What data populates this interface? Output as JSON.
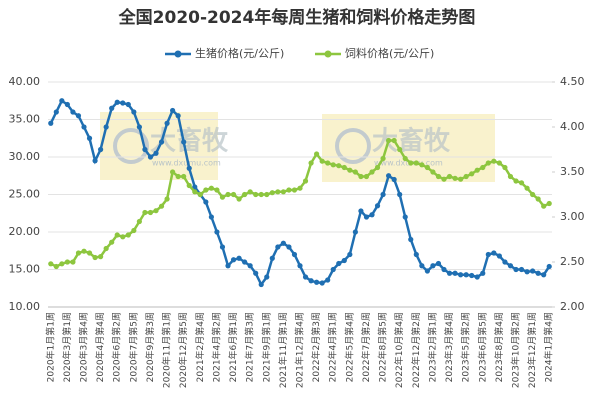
{
  "chart_data": {
    "type": "line",
    "title": "全国2020-2024年每周生猪和饲料价格走势图",
    "watermarks": [
      "大畜牧",
      "大畜牧"
    ],
    "watermark_urls": [
      "www.dxumu.com",
      "www.dxumu.com"
    ],
    "categories": [
      "2020年1月第1周",
      null,
      null,
      "2020年3月第1周",
      null,
      null,
      "2020年3月第4周",
      null,
      null,
      "2020年4月第4周",
      null,
      null,
      "2020年6月第2周",
      null,
      null,
      "2020年7月第5周",
      null,
      null,
      "2020年9月第3周",
      null,
      null,
      "2020年11月第1周",
      null,
      null,
      "2020年12月第5周",
      null,
      null,
      "2021年2月第4周",
      null,
      null,
      "2021年4月第2周",
      null,
      null,
      "2021年6月第1周",
      null,
      null,
      "2021年7月第3周",
      null,
      null,
      "2021年9月第1周",
      null,
      null,
      "2021年11月第1周",
      null,
      null,
      "2021年12月第4周",
      null,
      null,
      "2022年2月第3周",
      null,
      null,
      "2022年4月第1周",
      null,
      null,
      "2022年5月第4周",
      null,
      null,
      "2022年7月第2周",
      null,
      null,
      "2022年8月第5周",
      null,
      null,
      "2022年10月第4周",
      null,
      null,
      "2022年12月第2周",
      null,
      null,
      "2023年2月第1周",
      null,
      null,
      "2023年3月第4周",
      null,
      null,
      "2023年5月第2周",
      null,
      null,
      "2023年6月第5周",
      null,
      null,
      "2023年8月第4周",
      null,
      null,
      "2023年10月第2周",
      null,
      null,
      "2023年12月第1周",
      null,
      null,
      "2024年1月第4周"
    ],
    "series": [
      {
        "name": "生猪价格(元/公斤)",
        "color": "#1f6fb2",
        "axis": "y",
        "values": [
          34.5,
          36,
          37.5,
          37,
          36,
          35.5,
          34,
          32.5,
          29.5,
          31,
          34,
          36.5,
          37.3,
          37.2,
          37,
          36,
          34,
          31,
          30,
          30.5,
          32,
          34.5,
          36.2,
          35.5,
          32,
          28.5,
          26,
          25,
          24,
          22,
          20,
          18,
          15.5,
          16.3,
          16.5,
          16,
          15.5,
          14.5,
          13,
          14,
          16.5,
          18,
          18.5,
          18,
          17,
          15.5,
          14,
          13.5,
          13.3,
          13.2,
          13.6,
          15,
          15.8,
          16.2,
          17,
          20,
          22.8,
          22,
          22.3,
          23.5,
          25,
          27.5,
          27,
          25,
          22,
          19,
          17,
          15.5,
          14.8,
          15.5,
          15.8,
          15,
          14.5,
          14.5,
          14.3,
          14.3,
          14.2,
          14,
          14.5,
          17,
          17.2,
          16.8,
          16,
          15.5,
          15,
          15,
          14.7,
          14.8,
          14.5,
          14.3,
          15.4
        ]
      },
      {
        "name": "饲料价格(元/公斤)",
        "color": "#8dc63f",
        "axis": "y2",
        "values": [
          2.48,
          2.45,
          2.48,
          2.5,
          2.5,
          2.6,
          2.62,
          2.6,
          2.55,
          2.56,
          2.65,
          2.72,
          2.8,
          2.78,
          2.8,
          2.85,
          2.95,
          3.05,
          3.05,
          3.07,
          3.12,
          3.2,
          3.5,
          3.45,
          3.45,
          3.35,
          3.28,
          3.25,
          3.3,
          3.32,
          3.3,
          3.22,
          3.25,
          3.25,
          3.2,
          3.25,
          3.28,
          3.25,
          3.25,
          3.25,
          3.27,
          3.28,
          3.28,
          3.3,
          3.3,
          3.32,
          3.4,
          3.6,
          3.7,
          3.62,
          3.6,
          3.58,
          3.57,
          3.55,
          3.52,
          3.5,
          3.45,
          3.45,
          3.5,
          3.55,
          3.65,
          3.85,
          3.85,
          3.75,
          3.65,
          3.6,
          3.6,
          3.58,
          3.55,
          3.5,
          3.45,
          3.42,
          3.45,
          3.43,
          3.42,
          3.45,
          3.48,
          3.52,
          3.55,
          3.6,
          3.62,
          3.6,
          3.55,
          3.45,
          3.4,
          3.38,
          3.32,
          3.25,
          3.2,
          3.12,
          3.15
        ]
      }
    ],
    "ylim": [
      10,
      40
    ],
    "yticks": [
      {
        "value": 10,
        "label": "10.00"
      },
      {
        "value": 15,
        "label": "15.00"
      },
      {
        "value": 20,
        "label": "20.00"
      },
      {
        "value": 25,
        "label": "25.00"
      },
      {
        "value": 30,
        "label": "30.00"
      },
      {
        "value": 35,
        "label": "35.00"
      },
      {
        "value": 40,
        "label": "40.00"
      }
    ],
    "y2lim": [
      2,
      4.5
    ],
    "y2ticks": [
      {
        "value": 2,
        "label": "2.00"
      },
      {
        "value": 2.5,
        "label": "2.50"
      },
      {
        "value": 3,
        "label": "3.00"
      },
      {
        "value": 3.5,
        "label": "3.50"
      },
      {
        "value": 4,
        "label": "4.00"
      },
      {
        "value": 4.5,
        "label": "4.50"
      }
    ],
    "legend": "top"
  }
}
